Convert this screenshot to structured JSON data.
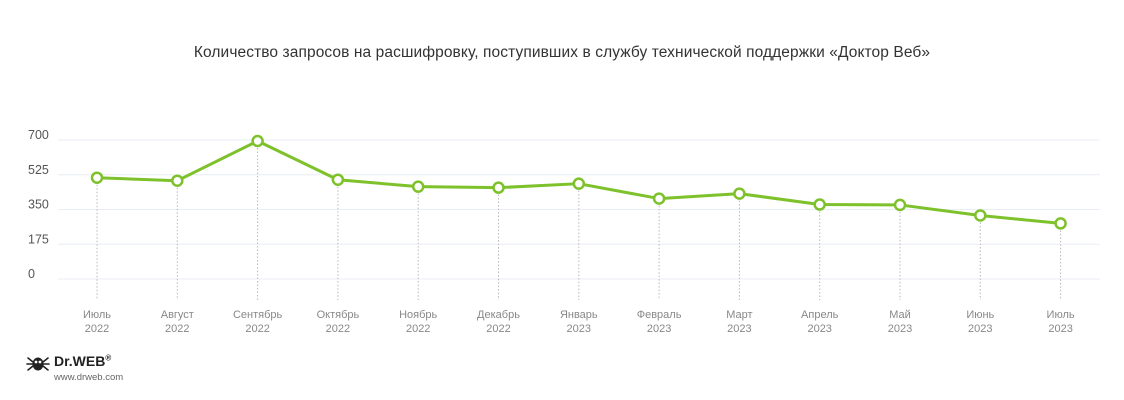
{
  "colors": {
    "line": "#7dc12b",
    "grid": "#e8eef4",
    "drop": "#b8b8b8"
  },
  "chart_data": {
    "type": "line",
    "title": "Количество запросов на расшифровку, поступивших в службу технической поддержки «Доктор Веб»",
    "y_ticks": [
      "700",
      "525",
      "350",
      "175",
      "0"
    ],
    "ylim": [
      0,
      700
    ],
    "grid": true,
    "categories": [
      [
        "Июль",
        "2022"
      ],
      [
        "Август",
        "2022"
      ],
      [
        "Сентябрь",
        "2022"
      ],
      [
        "Октябрь",
        "2022"
      ],
      [
        "Ноябрь",
        "2022"
      ],
      [
        "Декабрь",
        "2022"
      ],
      [
        "Январь",
        "2023"
      ],
      [
        "Февраль",
        "2023"
      ],
      [
        "Март",
        "2023"
      ],
      [
        "Апрель",
        "2023"
      ],
      [
        "Май",
        "2023"
      ],
      [
        "Июнь",
        "2023"
      ],
      [
        "Июль",
        "2023"
      ]
    ],
    "values": [
      510,
      495,
      695,
      500,
      465,
      460,
      480,
      405,
      430,
      375,
      373,
      320,
      280
    ]
  },
  "logo": {
    "brand": "Dr.WEB",
    "registered": "®",
    "url": "www.drweb.com",
    "icon": "spider-icon"
  }
}
